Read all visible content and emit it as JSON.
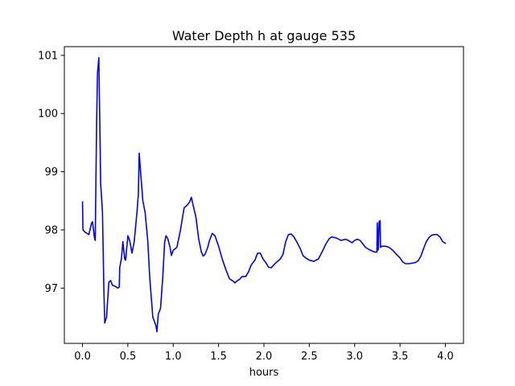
{
  "chart_data": {
    "type": "line",
    "title": "Water Depth h at gauge 535",
    "xlabel": "hours",
    "ylabel": "",
    "xlim": [
      -0.2,
      4.2
    ],
    "ylim": [
      96.05,
      101.15
    ],
    "xticks": [
      0.0,
      0.5,
      1.0,
      1.5,
      2.0,
      2.5,
      3.0,
      3.5,
      4.0
    ],
    "xtick_labels": [
      "0.0",
      "0.5",
      "1.0",
      "1.5",
      "2.0",
      "2.5",
      "3.0",
      "3.5",
      "4.0"
    ],
    "yticks": [
      97,
      98,
      99,
      100,
      101
    ],
    "ytick_labels": [
      "97",
      "98",
      "99",
      "100",
      "101"
    ],
    "grid": false,
    "legend": "none",
    "series": [
      {
        "color": "#0000ff",
        "points": [
          [
            0.0,
            98.48
          ],
          [
            0.005,
            98.0
          ],
          [
            0.03,
            97.96
          ],
          [
            0.07,
            97.92
          ],
          [
            0.1,
            98.12
          ],
          [
            0.11,
            98.14
          ],
          [
            0.13,
            97.88
          ],
          [
            0.14,
            97.82
          ],
          [
            0.155,
            99.8
          ],
          [
            0.165,
            100.7
          ],
          [
            0.18,
            100.96
          ],
          [
            0.2,
            98.8
          ],
          [
            0.22,
            98.3
          ],
          [
            0.235,
            97.0
          ],
          [
            0.245,
            96.4
          ],
          [
            0.265,
            96.5
          ],
          [
            0.29,
            97.1
          ],
          [
            0.31,
            97.13
          ],
          [
            0.33,
            97.05
          ],
          [
            0.36,
            97.03
          ],
          [
            0.39,
            97.0
          ],
          [
            0.405,
            97.02
          ],
          [
            0.41,
            97.35
          ],
          [
            0.43,
            97.52
          ],
          [
            0.445,
            97.8
          ],
          [
            0.465,
            97.5
          ],
          [
            0.475,
            97.48
          ],
          [
            0.5,
            97.9
          ],
          [
            0.52,
            97.82
          ],
          [
            0.545,
            97.6
          ],
          [
            0.57,
            97.8
          ],
          [
            0.6,
            98.3
          ],
          [
            0.615,
            98.6
          ],
          [
            0.625,
            99.32
          ],
          [
            0.64,
            99.0
          ],
          [
            0.665,
            98.5
          ],
          [
            0.69,
            98.3
          ],
          [
            0.72,
            97.8
          ],
          [
            0.74,
            97.2
          ],
          [
            0.76,
            96.8
          ],
          [
            0.775,
            96.5
          ],
          [
            0.81,
            96.35
          ],
          [
            0.82,
            96.25
          ],
          [
            0.835,
            96.55
          ],
          [
            0.86,
            96.65
          ],
          [
            0.885,
            97.2
          ],
          [
            0.905,
            97.78
          ],
          [
            0.92,
            97.9
          ],
          [
            0.94,
            97.85
          ],
          [
            0.965,
            97.7
          ],
          [
            0.98,
            97.56
          ],
          [
            1.0,
            97.65
          ],
          [
            1.04,
            97.7
          ],
          [
            1.08,
            98.0
          ],
          [
            1.12,
            98.38
          ],
          [
            1.15,
            98.42
          ],
          [
            1.18,
            98.48
          ],
          [
            1.2,
            98.56
          ],
          [
            1.22,
            98.42
          ],
          [
            1.25,
            98.22
          ],
          [
            1.28,
            97.85
          ],
          [
            1.31,
            97.62
          ],
          [
            1.33,
            97.55
          ],
          [
            1.35,
            97.58
          ],
          [
            1.38,
            97.7
          ],
          [
            1.4,
            97.82
          ],
          [
            1.43,
            97.94
          ],
          [
            1.46,
            97.9
          ],
          [
            1.5,
            97.72
          ],
          [
            1.54,
            97.5
          ],
          [
            1.58,
            97.32
          ],
          [
            1.62,
            97.16
          ],
          [
            1.66,
            97.12
          ],
          [
            1.68,
            97.09
          ],
          [
            1.7,
            97.12
          ],
          [
            1.73,
            97.15
          ],
          [
            1.76,
            97.2
          ],
          [
            1.8,
            97.2
          ],
          [
            1.83,
            97.28
          ],
          [
            1.86,
            97.4
          ],
          [
            1.9,
            97.48
          ],
          [
            1.93,
            97.6
          ],
          [
            1.96,
            97.6
          ],
          [
            1.99,
            97.5
          ],
          [
            2.02,
            97.44
          ],
          [
            2.05,
            97.36
          ],
          [
            2.08,
            97.35
          ],
          [
            2.11,
            97.4
          ],
          [
            2.15,
            97.46
          ],
          [
            2.18,
            97.5
          ],
          [
            2.21,
            97.58
          ],
          [
            2.24,
            97.8
          ],
          [
            2.27,
            97.92
          ],
          [
            2.3,
            97.93
          ],
          [
            2.33,
            97.88
          ],
          [
            2.36,
            97.8
          ],
          [
            2.4,
            97.68
          ],
          [
            2.43,
            97.56
          ],
          [
            2.46,
            97.52
          ],
          [
            2.5,
            97.48
          ],
          [
            2.55,
            97.46
          ],
          [
            2.6,
            97.5
          ],
          [
            2.64,
            97.62
          ],
          [
            2.68,
            97.75
          ],
          [
            2.72,
            97.85
          ],
          [
            2.75,
            97.88
          ],
          [
            2.8,
            97.86
          ],
          [
            2.85,
            97.82
          ],
          [
            2.9,
            97.84
          ],
          [
            2.93,
            97.82
          ],
          [
            2.97,
            97.78
          ],
          [
            3.0,
            97.82
          ],
          [
            3.03,
            97.84
          ],
          [
            3.06,
            97.82
          ],
          [
            3.09,
            97.76
          ],
          [
            3.12,
            97.7
          ],
          [
            3.16,
            97.66
          ],
          [
            3.19,
            97.64
          ],
          [
            3.22,
            97.62
          ],
          [
            3.245,
            97.62
          ],
          [
            3.25,
            98.12
          ],
          [
            3.255,
            97.65
          ],
          [
            3.26,
            97.66
          ],
          [
            3.27,
            98.14
          ],
          [
            3.28,
            98.16
          ],
          [
            3.285,
            97.7
          ],
          [
            3.3,
            97.72
          ],
          [
            3.34,
            97.72
          ],
          [
            3.38,
            97.7
          ],
          [
            3.42,
            97.65
          ],
          [
            3.46,
            97.58
          ],
          [
            3.5,
            97.52
          ],
          [
            3.53,
            97.45
          ],
          [
            3.56,
            97.42
          ],
          [
            3.6,
            97.42
          ],
          [
            3.64,
            97.43
          ],
          [
            3.67,
            97.44
          ],
          [
            3.7,
            97.47
          ],
          [
            3.73,
            97.55
          ],
          [
            3.76,
            97.68
          ],
          [
            3.79,
            97.8
          ],
          [
            3.82,
            97.87
          ],
          [
            3.85,
            97.91
          ],
          [
            3.88,
            97.92
          ],
          [
            3.91,
            97.92
          ],
          [
            3.94,
            97.88
          ],
          [
            3.97,
            97.8
          ],
          [
            4.0,
            97.77
          ]
        ]
      }
    ]
  }
}
